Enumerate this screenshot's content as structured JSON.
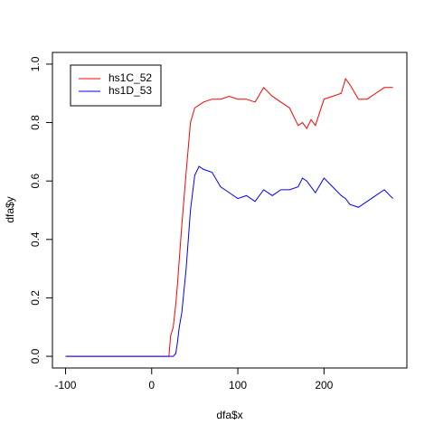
{
  "chart_data": {
    "type": "line",
    "x_label": "dfa$x",
    "y_label": "dfa$y",
    "x": [
      -100,
      0,
      10,
      20,
      22,
      25,
      28,
      30,
      32,
      35,
      40,
      45,
      50,
      55,
      60,
      70,
      80,
      90,
      100,
      110,
      120,
      130,
      140,
      150,
      160,
      170,
      175,
      180,
      185,
      190,
      200,
      210,
      220,
      225,
      230,
      240,
      250,
      260,
      270,
      280
    ],
    "series": [
      {
        "name": "hs1C_52",
        "color": "#ff0000",
        "values": [
          0,
          0,
          0,
          0,
          0.07,
          0.1,
          0.18,
          0.25,
          0.33,
          0.45,
          0.63,
          0.8,
          0.85,
          0.86,
          0.87,
          0.88,
          0.88,
          0.89,
          0.88,
          0.88,
          0.87,
          0.92,
          0.89,
          0.87,
          0.85,
          0.79,
          0.8,
          0.78,
          0.81,
          0.79,
          0.88,
          0.89,
          0.9,
          0.95,
          0.93,
          0.88,
          0.88,
          0.9,
          0.92,
          0.92
        ]
      },
      {
        "name": "hs1D_53",
        "color": "#0000ff",
        "values": [
          0,
          0,
          0,
          0,
          0,
          0,
          0.01,
          0.05,
          0.1,
          0.15,
          0.3,
          0.5,
          0.62,
          0.65,
          0.64,
          0.63,
          0.58,
          0.56,
          0.54,
          0.55,
          0.53,
          0.57,
          0.55,
          0.57,
          0.57,
          0.58,
          0.61,
          0.6,
          0.58,
          0.56,
          0.61,
          0.58,
          0.55,
          0.54,
          0.52,
          0.51,
          0.53,
          0.55,
          0.57,
          0.54
        ]
      }
    ],
    "xlim": [
      -115.2,
      296.2
    ],
    "ylim": [
      -0.04,
      1.04
    ],
    "xticks": [
      -100,
      0,
      100,
      200
    ],
    "yticks": [
      {
        "value": 0,
        "label": "0.0"
      },
      0.2,
      0.4,
      0.6,
      0.8,
      {
        "value": 1,
        "label": "1.0"
      }
    ],
    "legend_position": "topleft"
  }
}
